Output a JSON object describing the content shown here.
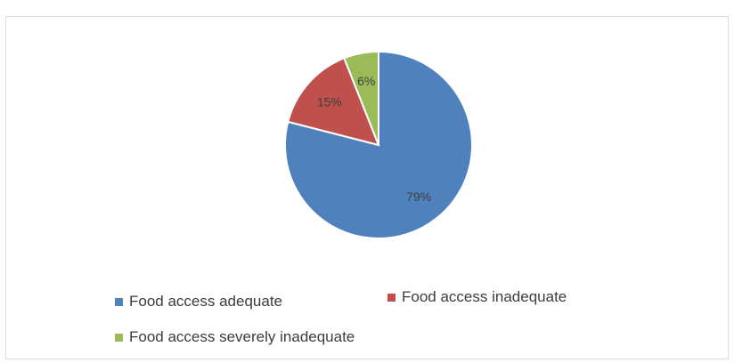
{
  "chart_data": {
    "type": "pie",
    "title": "",
    "slices": [
      {
        "label": "Food access adequate",
        "value": 79,
        "display": "79%",
        "color": "#4f81bd"
      },
      {
        "label": "Food access inadequate",
        "value": 15,
        "display": "15%",
        "color": "#c0504d"
      },
      {
        "label": "Food access severely inadequate",
        "value": 6,
        "display": "6%",
        "color": "#9bbb59"
      }
    ],
    "legend_position": "bottom"
  }
}
